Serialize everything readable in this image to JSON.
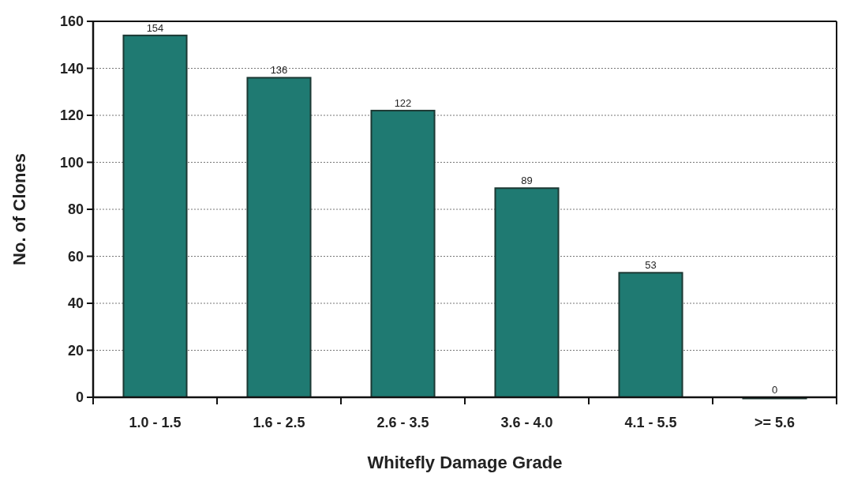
{
  "chart_data": {
    "type": "bar",
    "xlabel": "Whitefly Damage Grade",
    "ylabel": "No. of Clones",
    "categories": [
      "1.0 - 1.5",
      "1.6 - 2.5",
      "2.6 - 3.5",
      "3.6 - 4.0",
      "4.1 - 5.5",
      ">= 5.6"
    ],
    "values": [
      154,
      136,
      122,
      89,
      53,
      0
    ],
    "color": "#1f7a72",
    "ylim": [
      0,
      160
    ],
    "yticks": [
      0,
      20,
      40,
      60,
      80,
      100,
      120,
      140,
      160
    ],
    "grid": "y",
    "data_labels": true
  }
}
